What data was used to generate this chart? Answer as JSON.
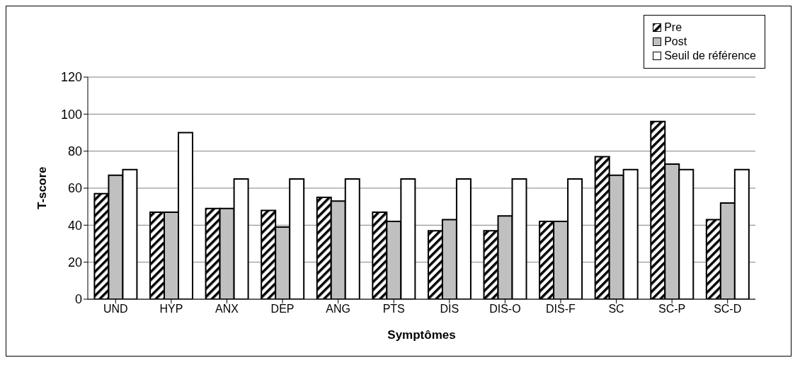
{
  "chart_data": {
    "type": "bar",
    "xlabel": "Symptômes",
    "ylabel": "T-score",
    "categories": [
      "UND",
      "HYP",
      "ANX",
      "DEP",
      "ANG",
      "PTS",
      "DIS",
      "DIS-O",
      "DIS-F",
      "SC",
      "SC-P",
      "SC-D"
    ],
    "series": [
      {
        "name": "Pre",
        "color": "#000000",
        "values": [
          57,
          47,
          49,
          48,
          55,
          47,
          37,
          37,
          42,
          77,
          96,
          43
        ]
      },
      {
        "name": "Post",
        "color": "#c0c0c0",
        "values": [
          67,
          47,
          49,
          39,
          53,
          42,
          43,
          45,
          42,
          67,
          73,
          52
        ]
      },
      {
        "name": "Seuil de référence",
        "color": "#ffffff",
        "values": [
          70,
          90,
          65,
          65,
          65,
          65,
          65,
          65,
          65,
          70,
          70,
          70
        ]
      }
    ],
    "ylim": [
      0,
      120
    ],
    "yticks": [
      0,
      20,
      40,
      60,
      80,
      100,
      120
    ],
    "grid": "y",
    "legend": "top right"
  }
}
